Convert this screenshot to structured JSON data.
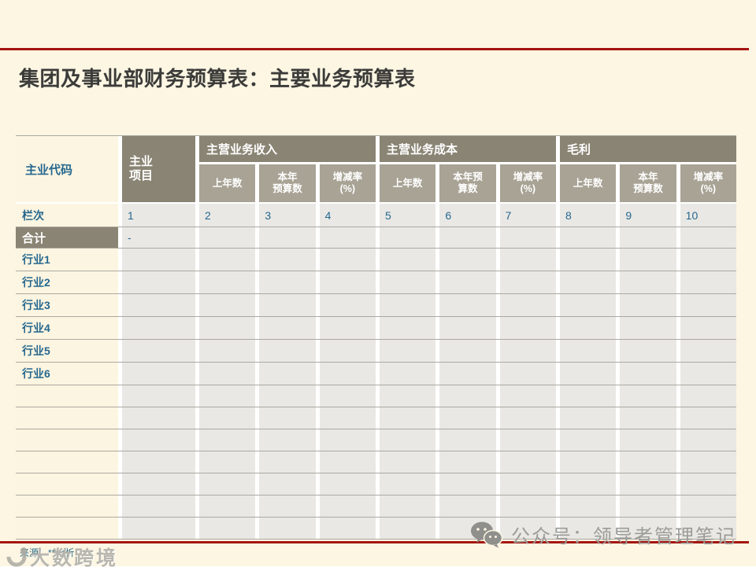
{
  "title": "集团及事业部财务预算表：主要业务预算表",
  "table": {
    "corner_header": "主业代码",
    "project_header": "主业\n项目",
    "groups": [
      {
        "label": "主营业务收入",
        "sub": [
          "上年数",
          "本年\n预算数",
          "增减率\n(%)"
        ]
      },
      {
        "label": "主营业务成本",
        "sub": [
          "上年数",
          "本年预\n算数",
          "增减率\n(%)"
        ]
      },
      {
        "label": "毛利",
        "sub": [
          "上年数",
          "本年\n预算数",
          "增减率\n(%)"
        ]
      }
    ],
    "body_rows": [
      {
        "type": "index",
        "label": "栏次",
        "cells": [
          "1",
          "2",
          "3",
          "4",
          "5",
          "6",
          "7",
          "8",
          "9",
          "10"
        ]
      },
      {
        "type": "total",
        "label": "合计",
        "cells": [
          "-",
          "",
          "",
          "",
          "",
          "",
          "",
          "",
          "",
          ""
        ]
      },
      {
        "type": "data",
        "label": "行业1",
        "cells": [
          "",
          "",
          "",
          "",
          "",
          "",
          "",
          "",
          "",
          ""
        ]
      },
      {
        "type": "data",
        "label": "行业2",
        "cells": [
          "",
          "",
          "",
          "",
          "",
          "",
          "",
          "",
          "",
          ""
        ]
      },
      {
        "type": "data",
        "label": "行业3",
        "cells": [
          "",
          "",
          "",
          "",
          "",
          "",
          "",
          "",
          "",
          ""
        ]
      },
      {
        "type": "data",
        "label": "行业4",
        "cells": [
          "",
          "",
          "",
          "",
          "",
          "",
          "",
          "",
          "",
          ""
        ]
      },
      {
        "type": "data",
        "label": "行业5",
        "cells": [
          "",
          "",
          "",
          "",
          "",
          "",
          "",
          "",
          "",
          ""
        ]
      },
      {
        "type": "data",
        "label": "行业6",
        "cells": [
          "",
          "",
          "",
          "",
          "",
          "",
          "",
          "",
          "",
          ""
        ]
      },
      {
        "type": "empty",
        "label": "",
        "cells": [
          "",
          "",
          "",
          "",
          "",
          "",
          "",
          "",
          "",
          ""
        ]
      },
      {
        "type": "empty",
        "label": "",
        "cells": [
          "",
          "",
          "",
          "",
          "",
          "",
          "",
          "",
          "",
          ""
        ]
      },
      {
        "type": "empty",
        "label": "",
        "cells": [
          "",
          "",
          "",
          "",
          "",
          "",
          "",
          "",
          "",
          ""
        ]
      },
      {
        "type": "empty",
        "label": "",
        "cells": [
          "",
          "",
          "",
          "",
          "",
          "",
          "",
          "",
          "",
          ""
        ]
      },
      {
        "type": "empty",
        "label": "",
        "cells": [
          "",
          "",
          "",
          "",
          "",
          "",
          "",
          "",
          "",
          ""
        ]
      },
      {
        "type": "empty",
        "label": "",
        "cells": [
          "",
          "",
          "",
          "",
          "",
          "",
          "",
          "",
          "",
          ""
        ]
      },
      {
        "type": "empty",
        "label": "",
        "cells": [
          "",
          "",
          "",
          "",
          "",
          "",
          "",
          "",
          "",
          ""
        ]
      }
    ]
  },
  "footer": {
    "source_text": "来源：**分析",
    "watermark_left": "大数跨境",
    "watermark_right": "公众号：领导者管理笔记"
  },
  "colors": {
    "background": "#FCF6E3",
    "accent_red": "#A41410",
    "header_dark": "#8A8474",
    "header_light": "#A8A395",
    "cell_gray": "#E9E8E4",
    "text_blue": "#26688F",
    "title_text": "#3B3B39",
    "watermark_gray": "#9B9B98"
  }
}
